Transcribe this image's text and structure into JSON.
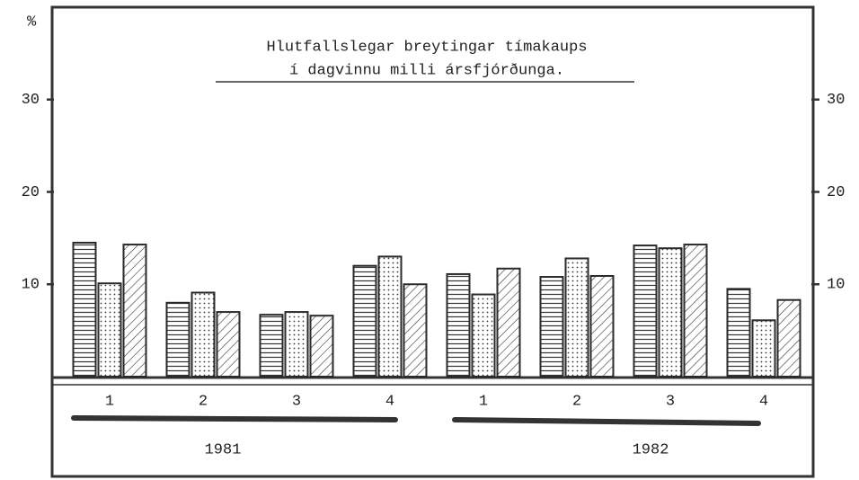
{
  "chart_data": {
    "type": "bar",
    "unit_label": "%",
    "title": [
      "Hlutfallslegar breytingar tímakaups",
      "í dagvinnu milli ársfjórðunga."
    ],
    "categories": [
      "1",
      "2",
      "3",
      "4",
      "1",
      "2",
      "3",
      "4"
    ],
    "groups": [
      "1981",
      "1982"
    ],
    "series": [
      {
        "color": "#2a2a2a",
        "pattern": "horizontal",
        "values": [
          14.5,
          8.0,
          6.7,
          12.0,
          11.1,
          10.8,
          14.2,
          9.5
        ]
      },
      {
        "color": "#2a2a2a",
        "pattern": "dots",
        "values": [
          10.1,
          9.1,
          7.0,
          13.0,
          8.9,
          12.8,
          13.9,
          6.1
        ]
      },
      {
        "color": "#2a2a2a",
        "pattern": "diagonal",
        "values": [
          14.3,
          7.0,
          6.6,
          10.0,
          11.7,
          10.9,
          14.3,
          8.3
        ]
      }
    ],
    "ylim": [
      0,
      40
    ],
    "yticks": [
      10,
      20,
      30
    ],
    "y2lim": [
      0,
      40
    ],
    "y2ticks": [
      10,
      20,
      30
    ]
  }
}
